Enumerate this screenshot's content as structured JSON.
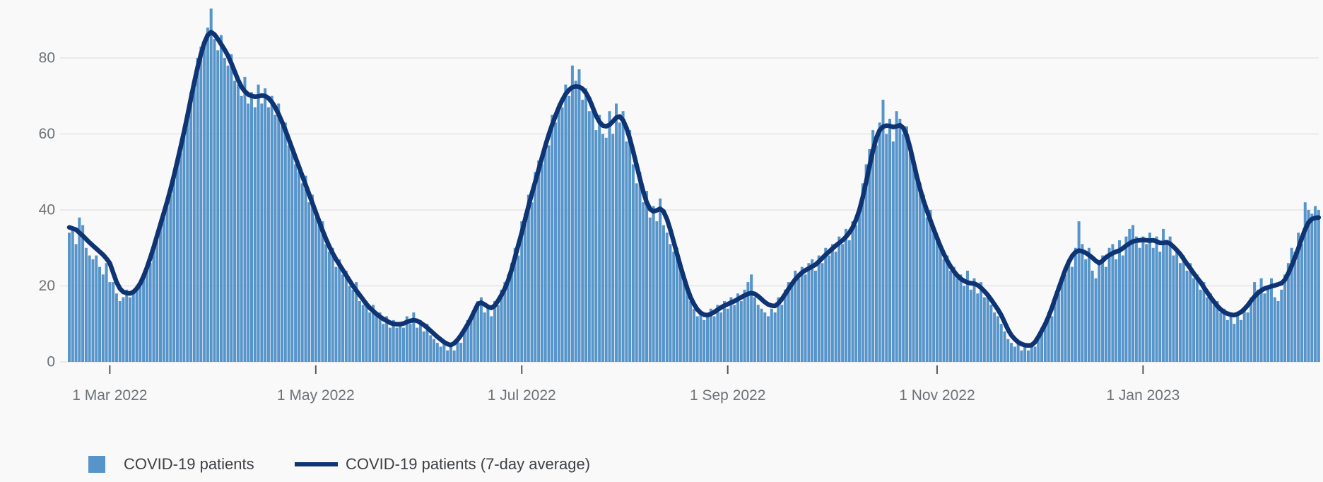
{
  "colors": {
    "background": "#f9f9f9",
    "bar": "#5694ca",
    "line": "#0f3474",
    "gridline": "#e6e6e6",
    "axis_text": "#6b7276",
    "tick_mark": "#505a5f",
    "legend_text": "#3d4145"
  },
  "legend": {
    "bars_label": "COVID-19 patients",
    "avg_label": "COVID-19 patients (7-day average)"
  },
  "chart_data": {
    "type": "bar+line",
    "title": "",
    "xlabel": "",
    "ylabel": "",
    "x_axis": {
      "tick_labels": [
        "1 Mar 2022",
        "1 May 2022",
        "1 Jul 2022",
        "1 Sep 2022",
        "1 Nov 2022",
        "1 Jan 2023"
      ],
      "tick_day_indices": [
        12,
        73,
        134,
        195,
        257,
        318
      ],
      "start_day_index": 0,
      "end_day_index": 370
    },
    "y_axis": {
      "tick_labels": [
        "0",
        "20",
        "40",
        "60",
        "80"
      ],
      "ticks": [
        0,
        20,
        40,
        60,
        80
      ],
      "range": [
        0,
        95
      ],
      "grid": true
    },
    "series": [
      {
        "name": "COVID-19 patients",
        "type": "bar",
        "color": "#5694ca",
        "values": [
          34,
          35,
          31,
          38,
          36,
          30,
          28,
          27,
          28,
          25,
          23,
          26,
          21,
          21,
          18,
          16,
          17,
          19,
          17,
          19,
          20,
          21,
          23,
          25,
          26,
          31,
          34,
          37,
          38,
          43,
          44,
          50,
          54,
          55,
          62,
          66,
          71,
          72,
          80,
          83,
          84,
          88,
          93,
          85,
          82,
          86,
          80,
          78,
          81,
          74,
          73,
          70,
          75,
          68,
          71,
          67,
          73,
          68,
          72,
          67,
          70,
          65,
          68,
          62,
          63,
          57,
          55,
          52,
          50,
          47,
          49,
          42,
          44,
          38,
          36,
          37,
          31,
          29,
          30,
          25,
          27,
          23,
          24,
          20,
          19,
          21,
          16,
          15,
          16,
          13,
          15,
          12,
          13,
          10,
          12,
          9,
          11,
          9,
          10,
          9,
          12,
          10,
          13,
          9,
          11,
          8,
          10,
          7,
          6,
          5,
          4,
          5,
          3,
          4,
          3,
          6,
          5,
          9,
          11,
          12,
          14,
          16,
          17,
          13,
          15,
          12,
          16,
          15,
          19,
          21,
          23,
          26,
          30,
          28,
          37,
          39,
          44,
          42,
          50,
          53,
          52,
          58,
          57,
          65,
          63,
          68,
          67,
          73,
          70,
          78,
          74,
          77,
          69,
          72,
          66,
          68,
          61,
          65,
          60,
          59,
          66,
          60,
          68,
          63,
          66,
          58,
          61,
          52,
          47,
          50,
          42,
          45,
          38,
          41,
          37,
          43,
          36,
          34,
          31,
          29,
          30,
          26,
          22,
          20,
          16,
          14,
          12,
          13,
          11,
          12,
          14,
          12,
          15,
          13,
          16,
          14,
          17,
          15,
          18,
          16,
          19,
          21,
          23,
          17,
          15,
          14,
          13,
          12,
          14,
          13,
          17,
          15,
          19,
          21,
          20,
          24,
          22,
          25,
          23,
          26,
          27,
          24,
          28,
          26,
          30,
          28,
          31,
          29,
          33,
          31,
          35,
          32,
          37,
          36,
          41,
          47,
          52,
          56,
          61,
          57,
          63,
          69,
          60,
          64,
          58,
          66,
          64,
          60,
          62,
          55,
          54,
          49,
          47,
          44,
          38,
          40,
          34,
          32,
          31,
          27,
          28,
          24,
          25,
          22,
          23,
          20,
          24,
          19,
          22,
          18,
          21,
          17,
          18,
          15,
          13,
          12,
          10,
          8,
          6,
          5,
          4,
          5,
          3,
          4,
          3,
          5,
          4,
          7,
          9,
          10,
          13,
          12,
          16,
          18,
          22,
          23,
          27,
          25,
          30,
          37,
          31,
          27,
          30,
          24,
          22,
          26,
          28,
          25,
          30,
          31,
          27,
          32,
          28,
          33,
          35,
          36,
          33,
          30,
          33,
          31,
          34,
          30,
          33,
          29,
          35,
          32,
          33,
          28,
          30,
          26,
          28,
          24,
          26,
          22,
          23,
          19,
          21,
          17,
          18,
          15,
          16,
          13,
          14,
          11,
          13,
          10,
          12,
          11,
          14,
          13,
          17,
          21,
          19,
          22,
          18,
          20,
          22,
          17,
          16,
          19,
          23,
          26,
          30,
          29,
          34,
          31,
          42,
          40,
          39,
          41,
          40
        ]
      },
      {
        "name": "COVID-19 patients (7-day average)",
        "type": "line",
        "color": "#0f3474",
        "values": [
          35.4,
          35.1,
          34.8,
          34.0,
          33.2,
          32.3,
          31.4,
          30.6,
          29.8,
          29.0,
          28.2,
          27.2,
          26.0,
          23.5,
          21.0,
          19.3,
          18.4,
          18.1,
          18.0,
          18.4,
          19.3,
          20.6,
          22.5,
          24.8,
          27.4,
          30.2,
          33.2,
          36.2,
          39.2,
          42.2,
          45.5,
          49.0,
          52.8,
          56.6,
          60.6,
          64.8,
          69.2,
          73.5,
          77.5,
          81.0,
          84.0,
          86.0,
          86.8,
          86.2,
          85.0,
          83.6,
          82.2,
          80.6,
          78.6,
          76.4,
          74.2,
          72.4,
          71.2,
          70.4,
          70.0,
          69.8,
          69.9,
          70.1,
          70.0,
          69.4,
          68.4,
          67.0,
          65.2,
          63.2,
          61.0,
          58.6,
          56.2,
          53.8,
          51.4,
          49.0,
          46.6,
          44.2,
          41.8,
          39.4,
          37.0,
          34.6,
          32.4,
          30.4,
          28.6,
          27.0,
          25.6,
          24.2,
          22.8,
          21.4,
          20.0,
          18.8,
          17.6,
          16.4,
          15.2,
          14.2,
          13.4,
          12.6,
          11.9,
          11.3,
          10.8,
          10.3,
          10.0,
          9.9,
          9.9,
          10.1,
          10.5,
          10.8,
          11.0,
          10.8,
          10.3,
          9.7,
          9.0,
          8.2,
          7.4,
          6.6,
          5.9,
          5.2,
          4.7,
          4.4,
          4.9,
          5.8,
          7.0,
          8.4,
          9.9,
          11.5,
          13.4,
          15.2,
          15.6,
          15.1,
          14.5,
          14.2,
          14.8,
          16.1,
          17.6,
          19.3,
          21.5,
          24.3,
          27.5,
          30.8,
          34.0,
          37.5,
          41.0,
          44.3,
          47.4,
          50.6,
          53.8,
          56.9,
          59.8,
          62.4,
          64.8,
          67.0,
          68.9,
          70.5,
          71.6,
          72.3,
          72.5,
          72.4,
          71.9,
          70.8,
          69.2,
          67.0,
          64.8,
          63.2,
          62.2,
          62.0,
          62.4,
          63.3,
          64.3,
          64.6,
          63.6,
          61.6,
          58.8,
          55.4,
          51.8,
          48.2,
          44.8,
          42.0,
          40.2,
          39.6,
          39.9,
          40.3,
          39.6,
          37.6,
          34.8,
          31.6,
          28.4,
          25.2,
          22.2,
          19.4,
          17.0,
          15.2,
          13.8,
          12.9,
          12.4,
          12.3,
          12.6,
          13.1,
          13.7,
          14.3,
          14.8,
          15.2,
          15.6,
          16.0,
          16.5,
          17.0,
          17.5,
          17.9,
          18.1,
          17.9,
          17.3,
          16.5,
          15.7,
          15.1,
          14.8,
          14.7,
          15.4,
          16.5,
          17.8,
          19.2,
          20.5,
          21.7,
          22.7,
          23.5,
          24.1,
          24.6,
          25.1,
          25.6,
          26.4,
          27.3,
          28.2,
          29.0,
          29.8,
          30.6,
          31.3,
          32.0,
          32.9,
          34.0,
          35.4,
          37.4,
          40.0,
          43.4,
          47.4,
          51.6,
          55.6,
          58.9,
          61.0,
          61.9,
          62.2,
          62.1,
          61.8,
          62.0,
          62.3,
          61.6,
          59.6,
          56.4,
          52.6,
          48.8,
          45.4,
          42.4,
          39.8,
          37.3,
          34.9,
          32.6,
          30.4,
          28.4,
          26.6,
          25.1,
          23.8,
          22.7,
          21.9,
          21.3,
          20.9,
          20.7,
          20.6,
          20.2,
          19.5,
          18.6,
          17.6,
          16.4,
          15.1,
          13.8,
          12.3,
          10.4,
          8.5,
          7.0,
          6.0,
          5.2,
          4.7,
          4.4,
          4.3,
          4.4,
          5.2,
          6.6,
          8.2,
          9.9,
          11.9,
          14.2,
          16.8,
          19.3,
          21.8,
          24.3,
          26.3,
          27.9,
          28.9,
          29.3,
          29.1,
          28.7,
          28.1,
          27.4,
          26.6,
          26.0,
          26.6,
          27.5,
          28.1,
          28.6,
          29.0,
          29.3,
          29.9,
          30.6,
          31.2,
          31.7,
          31.9,
          32.0,
          32.1,
          32.0,
          31.9,
          32.0,
          31.7,
          31.3,
          31.3,
          31.5,
          31.1,
          30.3,
          29.4,
          28.4,
          27.1,
          25.8,
          24.6,
          23.3,
          22.1,
          21.0,
          19.6,
          18.3,
          17.0,
          15.8,
          14.7,
          13.8,
          13.1,
          12.7,
          12.4,
          12.3,
          12.6,
          13.1,
          13.9,
          14.9,
          16.1,
          17.2,
          18.1,
          18.8,
          19.3,
          19.6,
          19.9,
          20.1,
          20.4,
          20.7,
          21.6,
          23.3,
          25.3,
          27.5,
          29.9,
          32.5,
          34.9,
          36.7,
          37.6,
          37.9,
          38.0
        ]
      }
    ]
  }
}
